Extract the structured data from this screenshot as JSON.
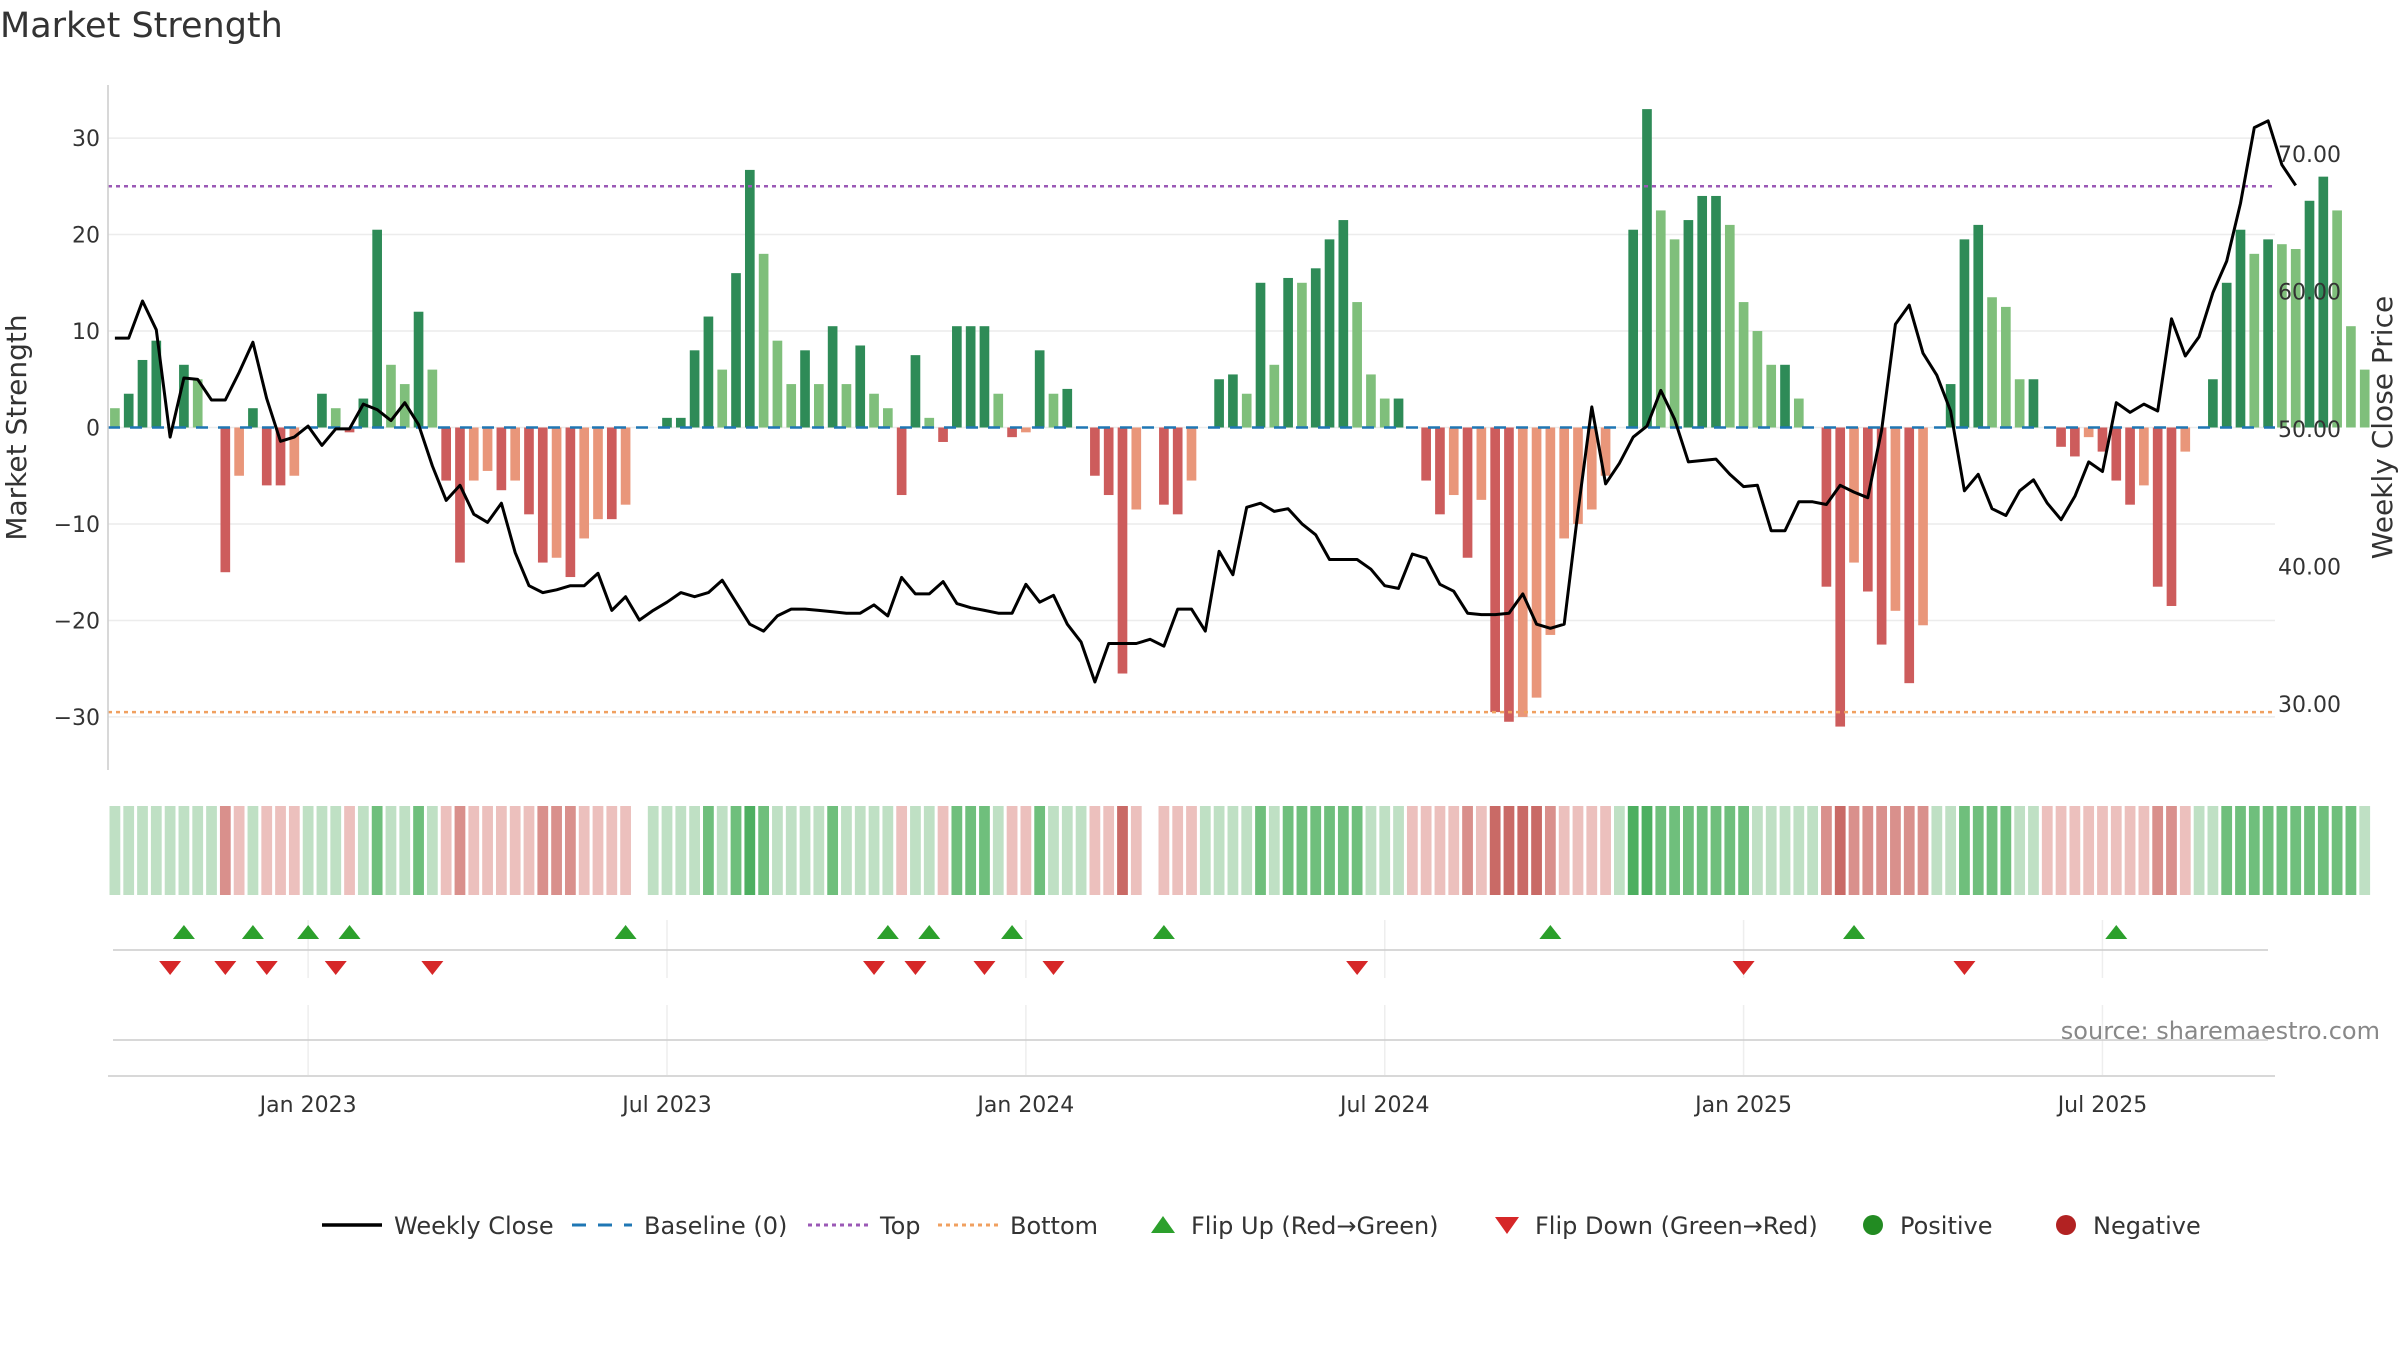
{
  "title": "Market Strength",
  "source_text": "source: sharemaestro.com",
  "colors": {
    "strong_green": "#2e8b57",
    "light_green": "#7fbf7b",
    "strong_red": "#cd5c5c",
    "light_red": "#e9967a",
    "top_line": "#9b59b6",
    "bottom_line": "#f0a060",
    "baseline": "#1f77b4",
    "close": "#000000",
    "flip_up": "#2ca02c",
    "flip_down": "#d62728",
    "positive": "#228b22",
    "negative": "#b22222"
  },
  "chart_data": {
    "type": "bar",
    "title": "Market Strength",
    "ylabel": "Market Strength",
    "y2label": "Weekly Close Price",
    "ylim": [
      -35.5,
      35.5
    ],
    "y2lim": [
      25.2,
      75.0
    ],
    "yticks": [
      30,
      20,
      10,
      0,
      -10,
      -20,
      -30
    ],
    "ytick_labels": [
      "30",
      "20",
      "10",
      "0",
      "−10",
      "−20",
      "−30"
    ],
    "y2ticks": [
      70,
      60,
      50,
      40,
      30
    ],
    "y2tick_labels": [
      "70.00",
      "60.00",
      "50.00",
      "40.00",
      "30.00"
    ],
    "xlim_week": [
      -0.5,
      156.5
    ],
    "x_tick_labels": [
      "Jan 2023",
      "Jul 2023",
      "Jan 2024",
      "Jul 2024",
      "Jan 2025",
      "Jul 2025"
    ],
    "x_tick_weeks": [
      14,
      40,
      66,
      92,
      118,
      144
    ],
    "top_level": 25,
    "bottom_level": -29.5,
    "baseline": 0,
    "strength": [
      2,
      3.5,
      7,
      9,
      0,
      6.5,
      5,
      0,
      -15,
      -5,
      2,
      -6,
      -6,
      -5,
      0,
      3.5,
      2,
      -0.5,
      3,
      20.5,
      6.5,
      4.5,
      12,
      6,
      -5.5,
      -14,
      -5.5,
      -4.5,
      -6.5,
      -5.5,
      -9,
      -14,
      -13.5,
      -15.5,
      -11.5,
      -9.5,
      -9.5,
      -8,
      0,
      0,
      1,
      1,
      8,
      11.5,
      6,
      16,
      26.7,
      18,
      9,
      4.5,
      8,
      4.5,
      10.5,
      4.5,
      8.5,
      3.5,
      2,
      -7,
      7.5,
      1,
      -1.5,
      10.5,
      10.5,
      10.5,
      3.5,
      -1,
      -0.5,
      8,
      3.5,
      4,
      0,
      -5,
      -7,
      -25.5,
      -8.5,
      0,
      -8,
      -9,
      -5.5,
      0,
      5,
      5.5,
      3.5,
      15,
      6.5,
      15.5,
      15,
      16.5,
      19.5,
      21.5,
      13,
      5.5,
      3,
      3,
      0,
      -5.5,
      -9,
      -7,
      -13.5,
      -7.5,
      -29.5,
      -30.5,
      -30,
      -28,
      -21.5,
      -11.5,
      -10,
      -8.5,
      -5,
      0,
      20.5,
      33,
      22.5,
      19.5,
      21.5,
      24,
      24,
      21,
      13,
      10,
      6.5,
      6.5,
      3,
      0,
      -16.5,
      -31,
      -14,
      -17,
      -22.5,
      -19,
      -26.5,
      -20.5,
      0,
      4.5,
      19.5,
      21,
      13.5,
      12.5,
      5,
      5,
      0,
      -2,
      -3,
      -1,
      -2.5,
      -5.5,
      -8,
      -6,
      -16.5,
      -18.5,
      -2.5,
      0,
      5,
      15,
      20.5,
      18,
      19.5,
      19,
      18.5,
      23.5,
      26,
      22.5,
      10.5,
      6
    ],
    "close": [
      56.6,
      56.6,
      59.3,
      57.2,
      49.4,
      53.7,
      53.6,
      52.1,
      52.1,
      54.1,
      56.3,
      52.2,
      49.1,
      49.4,
      50.2,
      48.8,
      50.0,
      50.0,
      51.8,
      51.4,
      50.6,
      51.9,
      50.3,
      47.3,
      44.8,
      45.9,
      43.8,
      43.2,
      44.6,
      41.0,
      38.6,
      38.1,
      38.3,
      38.6,
      38.6,
      39.5,
      36.8,
      37.8,
      36.1,
      36.8,
      37.4,
      38.1,
      37.8,
      38.1,
      39.0,
      37.4,
      35.8,
      35.3,
      36.4,
      36.9,
      36.9,
      36.8,
      36.7,
      36.6,
      36.6,
      37.2,
      36.4,
      39.2,
      38.0,
      38.0,
      38.9,
      37.3,
      37.0,
      36.8,
      36.6,
      36.6,
      38.7,
      37.4,
      37.9,
      35.8,
      34.5,
      31.6,
      34.4,
      34.4,
      34.4,
      34.7,
      34.2,
      36.9,
      36.9,
      35.3,
      41.1,
      39.4,
      44.3,
      44.6,
      44.0,
      44.2,
      43.1,
      42.3,
      40.5,
      40.5,
      40.5,
      39.8,
      38.6,
      38.4,
      40.9,
      40.6,
      38.7,
      38.2,
      36.6,
      36.5,
      36.5,
      36.6,
      38.0,
      35.8,
      35.5,
      35.8,
      44.0,
      51.6,
      46.0,
      47.5,
      49.4,
      50.2,
      52.8,
      50.7,
      47.6,
      47.7,
      47.8,
      46.7,
      45.8,
      45.9,
      42.6,
      42.6,
      44.7,
      44.7,
      44.5,
      45.9,
      45.4,
      45.0,
      49.9,
      57.6,
      59.0,
      55.5,
      53.9,
      51.3,
      45.5,
      46.7,
      44.2,
      43.7,
      45.5,
      46.3,
      44.6,
      43.4,
      45.1,
      47.6,
      46.9,
      51.9,
      51.2,
      51.8,
      51.3,
      58.0,
      55.3,
      56.7,
      59.9,
      62.2,
      66.4,
      71.9,
      72.4,
      69.2,
      67.7
    ],
    "state_levels": [
      1,
      1,
      1,
      1,
      1,
      1,
      1,
      1,
      -2,
      -1,
      1,
      -1,
      -1,
      -1,
      1,
      1,
      1,
      -1,
      1,
      2,
      1,
      1,
      2,
      1,
      -1,
      -2,
      -1,
      -1,
      -1,
      -1,
      -1,
      -2,
      -2,
      -2,
      -1,
      -1,
      -1,
      -1,
      0,
      1,
      1,
      1,
      1,
      2,
      1,
      2,
      3,
      2,
      1,
      1,
      1,
      1,
      2,
      1,
      1,
      1,
      1,
      -1,
      1,
      1,
      -1,
      2,
      2,
      2,
      1,
      -1,
      -1,
      2,
      1,
      1,
      1,
      -1,
      -1,
      -3,
      -1,
      0,
      -1,
      -1,
      -1,
      1,
      1,
      1,
      1,
      2,
      1,
      2,
      2,
      2,
      2,
      2,
      2,
      1,
      1,
      1,
      -1,
      -1,
      -1,
      -1,
      -2,
      -1,
      -3,
      -3,
      -3,
      -3,
      -2,
      -1,
      -1,
      -1,
      -1,
      1,
      3,
      3,
      2,
      2,
      2,
      2,
      2,
      2,
      2,
      1,
      1,
      1,
      1,
      1,
      -2,
      -3,
      -2,
      -2,
      -2,
      -2,
      -2,
      -2,
      1,
      1,
      2,
      2,
      2,
      2,
      1,
      1,
      -1,
      -1,
      -1,
      -1,
      -1,
      -1,
      -1,
      -1,
      -2,
      -2,
      -1,
      1,
      1,
      2,
      2,
      2,
      2,
      2,
      2,
      2,
      2,
      2,
      2,
      1
    ],
    "flip_up_weeks": [
      5,
      10,
      14,
      17,
      37,
      56,
      59,
      65,
      76,
      104,
      126,
      145
    ],
    "flip_down_weeks": [
      4,
      8,
      11,
      16,
      23,
      55,
      58,
      63,
      68,
      90,
      118,
      134
    ]
  },
  "legend": {
    "items": [
      {
        "label": "Weekly Close",
        "kind": "line"
      },
      {
        "label": "Baseline (0)",
        "kind": "dash"
      },
      {
        "label": "Top",
        "kind": "dot-purple"
      },
      {
        "label": "Bottom",
        "kind": "dot-orange"
      },
      {
        "label": "Flip Up (Red→Green)",
        "kind": "tri-up"
      },
      {
        "label": "Flip Down (Green→Red)",
        "kind": "tri-down"
      },
      {
        "label": "Positive",
        "kind": "circle-green"
      },
      {
        "label": "Negative",
        "kind": "circle-red"
      }
    ]
  }
}
